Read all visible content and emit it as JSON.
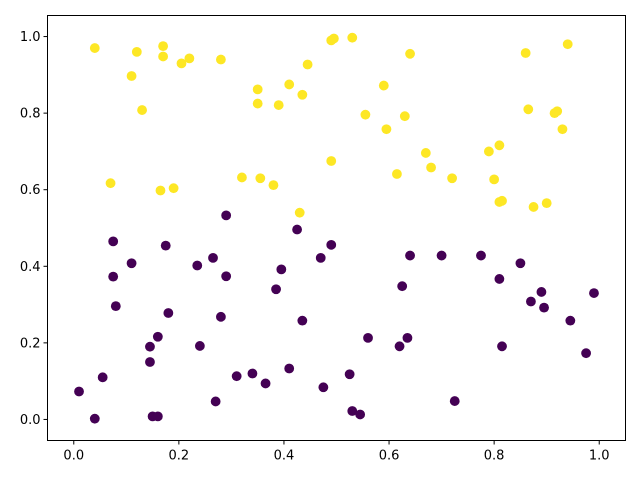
{
  "chart_data": {
    "type": "scatter",
    "title": "",
    "xlabel": "",
    "ylabel": "",
    "xlim": [
      -0.05,
      1.05
    ],
    "ylim": [
      -0.055,
      1.055
    ],
    "xticks": [
      0.0,
      0.2,
      0.4,
      0.6,
      0.8,
      1.0
    ],
    "yticks": [
      0.0,
      0.2,
      0.4,
      0.6,
      0.8,
      1.0
    ],
    "xtick_labels": [
      "0.0",
      "0.2",
      "0.4",
      "0.6",
      "0.8",
      "1.0"
    ],
    "ytick_labels": [
      "0.0",
      "0.2",
      "0.4",
      "0.6",
      "0.8",
      "1.0"
    ],
    "grid": false,
    "series": [
      {
        "color": "#fde725",
        "points": [
          [
            0.04,
            0.97
          ],
          [
            0.12,
            0.96
          ],
          [
            0.17,
            0.975
          ],
          [
            0.17,
            0.948
          ],
          [
            0.11,
            0.897
          ],
          [
            0.13,
            0.808
          ],
          [
            0.205,
            0.93
          ],
          [
            0.22,
            0.943
          ],
          [
            0.28,
            0.94
          ],
          [
            0.35,
            0.862
          ],
          [
            0.35,
            0.825
          ],
          [
            0.39,
            0.821
          ],
          [
            0.41,
            0.875
          ],
          [
            0.435,
            0.848
          ],
          [
            0.445,
            0.927
          ],
          [
            0.49,
            0.99
          ],
          [
            0.495,
            0.995
          ],
          [
            0.53,
            0.997
          ],
          [
            0.64,
            0.955
          ],
          [
            0.59,
            0.872
          ],
          [
            0.555,
            0.796
          ],
          [
            0.595,
            0.758
          ],
          [
            0.63,
            0.792
          ],
          [
            0.07,
            0.617
          ],
          [
            0.165,
            0.598
          ],
          [
            0.19,
            0.604
          ],
          [
            0.32,
            0.632
          ],
          [
            0.355,
            0.63
          ],
          [
            0.38,
            0.612
          ],
          [
            0.49,
            0.675
          ],
          [
            0.43,
            0.54
          ],
          [
            0.615,
            0.641
          ],
          [
            0.67,
            0.696
          ],
          [
            0.68,
            0.658
          ],
          [
            0.72,
            0.63
          ],
          [
            0.79,
            0.7
          ],
          [
            0.81,
            0.716
          ],
          [
            0.8,
            0.627
          ],
          [
            0.815,
            0.571
          ],
          [
            0.81,
            0.568
          ],
          [
            0.86,
            0.957
          ],
          [
            0.94,
            0.98
          ],
          [
            0.865,
            0.81
          ],
          [
            0.915,
            0.8
          ],
          [
            0.92,
            0.805
          ],
          [
            0.93,
            0.758
          ],
          [
            0.875,
            0.555
          ],
          [
            0.9,
            0.565
          ]
        ]
      },
      {
        "color": "#440154",
        "points": [
          [
            0.075,
            0.465
          ],
          [
            0.075,
            0.373
          ],
          [
            0.11,
            0.408
          ],
          [
            0.08,
            0.296
          ],
          [
            0.175,
            0.454
          ],
          [
            0.18,
            0.278
          ],
          [
            0.16,
            0.216
          ],
          [
            0.145,
            0.19
          ],
          [
            0.145,
            0.15
          ],
          [
            0.01,
            0.073
          ],
          [
            0.055,
            0.11
          ],
          [
            0.04,
            0.002
          ],
          [
            0.15,
            0.008
          ],
          [
            0.16,
            0.008
          ],
          [
            0.235,
            0.402
          ],
          [
            0.265,
            0.422
          ],
          [
            0.29,
            0.533
          ],
          [
            0.29,
            0.374
          ],
          [
            0.28,
            0.268
          ],
          [
            0.24,
            0.192
          ],
          [
            0.31,
            0.113
          ],
          [
            0.34,
            0.12
          ],
          [
            0.365,
            0.094
          ],
          [
            0.27,
            0.047
          ],
          [
            0.385,
            0.34
          ],
          [
            0.395,
            0.392
          ],
          [
            0.425,
            0.496
          ],
          [
            0.435,
            0.258
          ],
          [
            0.41,
            0.133
          ],
          [
            0.47,
            0.422
          ],
          [
            0.49,
            0.456
          ],
          [
            0.475,
            0.084
          ],
          [
            0.525,
            0.118
          ],
          [
            0.53,
            0.022
          ],
          [
            0.545,
            0.013
          ],
          [
            0.56,
            0.213
          ],
          [
            0.625,
            0.348
          ],
          [
            0.64,
            0.428
          ],
          [
            0.635,
            0.213
          ],
          [
            0.62,
            0.191
          ],
          [
            0.7,
            0.428
          ],
          [
            0.725,
            0.048
          ],
          [
            0.775,
            0.428
          ],
          [
            0.81,
            0.367
          ],
          [
            0.815,
            0.191
          ],
          [
            0.85,
            0.408
          ],
          [
            0.87,
            0.308
          ],
          [
            0.89,
            0.333
          ],
          [
            0.895,
            0.292
          ],
          [
            0.945,
            0.258
          ],
          [
            0.975,
            0.173
          ],
          [
            0.99,
            0.33
          ]
        ]
      }
    ]
  }
}
